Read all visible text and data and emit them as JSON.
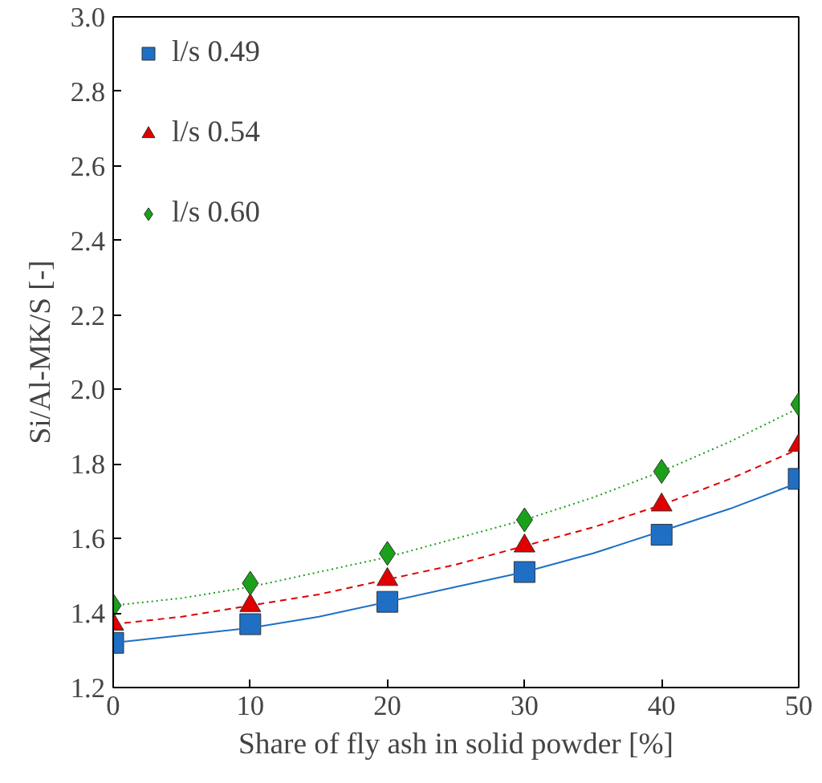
{
  "chart_data": {
    "type": "scatter",
    "xlabel": "Share of fly ash in solid powder [%]",
    "ylabel": "Si/Al-MK/S [-]",
    "xlim": [
      0,
      50
    ],
    "xticks": [
      0,
      10,
      20,
      30,
      40,
      50
    ],
    "ylim": [
      1.2,
      3.0
    ],
    "yticks": [
      1.2,
      1.4,
      1.6,
      1.8,
      {
        "value": 2.0,
        "label": "2.0"
      },
      2.2,
      2.4,
      2.6,
      2.8,
      {
        "value": 3.0,
        "label": "3.0"
      }
    ],
    "grid": false,
    "legend": "top left",
    "x": [
      0,
      10,
      20,
      30,
      40,
      50
    ],
    "series": [
      {
        "name": "l/s 0.49",
        "color": "#1f6fc5",
        "marker": "square",
        "values": [
          1.32,
          1.37,
          1.43,
          1.51,
          1.61,
          1.76
        ]
      },
      {
        "name": "l/s 0.54",
        "color": "#e00000",
        "marker": "triangle",
        "values": [
          1.37,
          1.42,
          1.49,
          1.58,
          1.69,
          1.85
        ]
      },
      {
        "name": "l/s 0.60",
        "color": "#1aa01a",
        "marker": "diamond",
        "values": [
          1.42,
          1.48,
          1.56,
          1.65,
          1.78,
          1.96
        ]
      },
      {
        "type": "line",
        "color": "#1f6fc5",
        "line_style": "solid",
        "x": [
          0,
          5,
          10,
          15,
          20,
          25,
          30,
          35,
          40,
          45,
          50
        ],
        "values": [
          1.32,
          1.34,
          1.36,
          1.39,
          1.43,
          1.47,
          1.51,
          1.56,
          1.62,
          1.68,
          1.75
        ]
      },
      {
        "type": "line",
        "color": "#e00000",
        "line_style": "dashed",
        "x": [
          0,
          5,
          10,
          15,
          20,
          25,
          30,
          35,
          40,
          45,
          50
        ],
        "values": [
          1.37,
          1.39,
          1.42,
          1.45,
          1.49,
          1.53,
          1.58,
          1.63,
          1.69,
          1.76,
          1.84
        ]
      },
      {
        "type": "line",
        "color": "#1aa01a",
        "line_style": "dotted",
        "x": [
          0,
          5,
          10,
          15,
          20,
          25,
          30,
          35,
          40,
          45,
          50
        ],
        "values": [
          1.42,
          1.44,
          1.47,
          1.51,
          1.55,
          1.6,
          1.65,
          1.71,
          1.78,
          1.86,
          1.95
        ]
      }
    ]
  }
}
